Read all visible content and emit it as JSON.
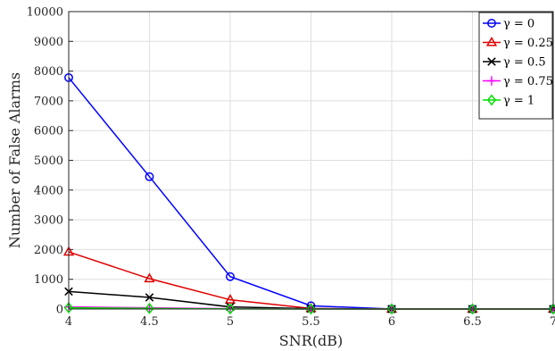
{
  "chart_data": {
    "type": "line",
    "title": "",
    "xlabel": "SNR(dB)",
    "ylabel": "Number of False Alarms",
    "xlim": [
      4,
      7
    ],
    "ylim": [
      0,
      10000
    ],
    "xticks": [
      4,
      4.5,
      5,
      5.5,
      6,
      6.5,
      7
    ],
    "xtick_labels": [
      "4",
      "4.5",
      "5",
      "5.5",
      "6",
      "6.5",
      "7"
    ],
    "yticks": [
      0,
      1000,
      2000,
      3000,
      4000,
      5000,
      6000,
      7000,
      8000,
      9000,
      10000
    ],
    "ytick_labels": [
      "0",
      "1000",
      "2000",
      "3000",
      "4000",
      "5000",
      "6000",
      "7000",
      "8000",
      "9000",
      "10000"
    ],
    "grid": true,
    "legend_position": "top-right",
    "x": [
      4,
      4.5,
      5,
      5.5,
      6,
      6.5,
      7
    ],
    "series": [
      {
        "name": "γ = 0",
        "color": "#0000ff",
        "marker": "circle",
        "values": [
          7780,
          4450,
          1090,
          110,
          0,
          0,
          0
        ]
      },
      {
        "name": "γ = 0.25",
        "color": "#e00000",
        "marker": "triangle",
        "values": [
          1920,
          1020,
          310,
          20,
          0,
          0,
          0
        ]
      },
      {
        "name": "γ = 0.5",
        "color": "#000000",
        "marker": "x",
        "values": [
          590,
          390,
          70,
          10,
          0,
          0,
          0
        ]
      },
      {
        "name": "γ = 0.75",
        "color": "#ff00ff",
        "marker": "plus",
        "values": [
          70,
          40,
          10,
          0,
          0,
          0,
          0
        ]
      },
      {
        "name": "γ = 1",
        "color": "#00e000",
        "marker": "diamond",
        "values": [
          40,
          20,
          5,
          0,
          0,
          0,
          0
        ]
      }
    ]
  }
}
